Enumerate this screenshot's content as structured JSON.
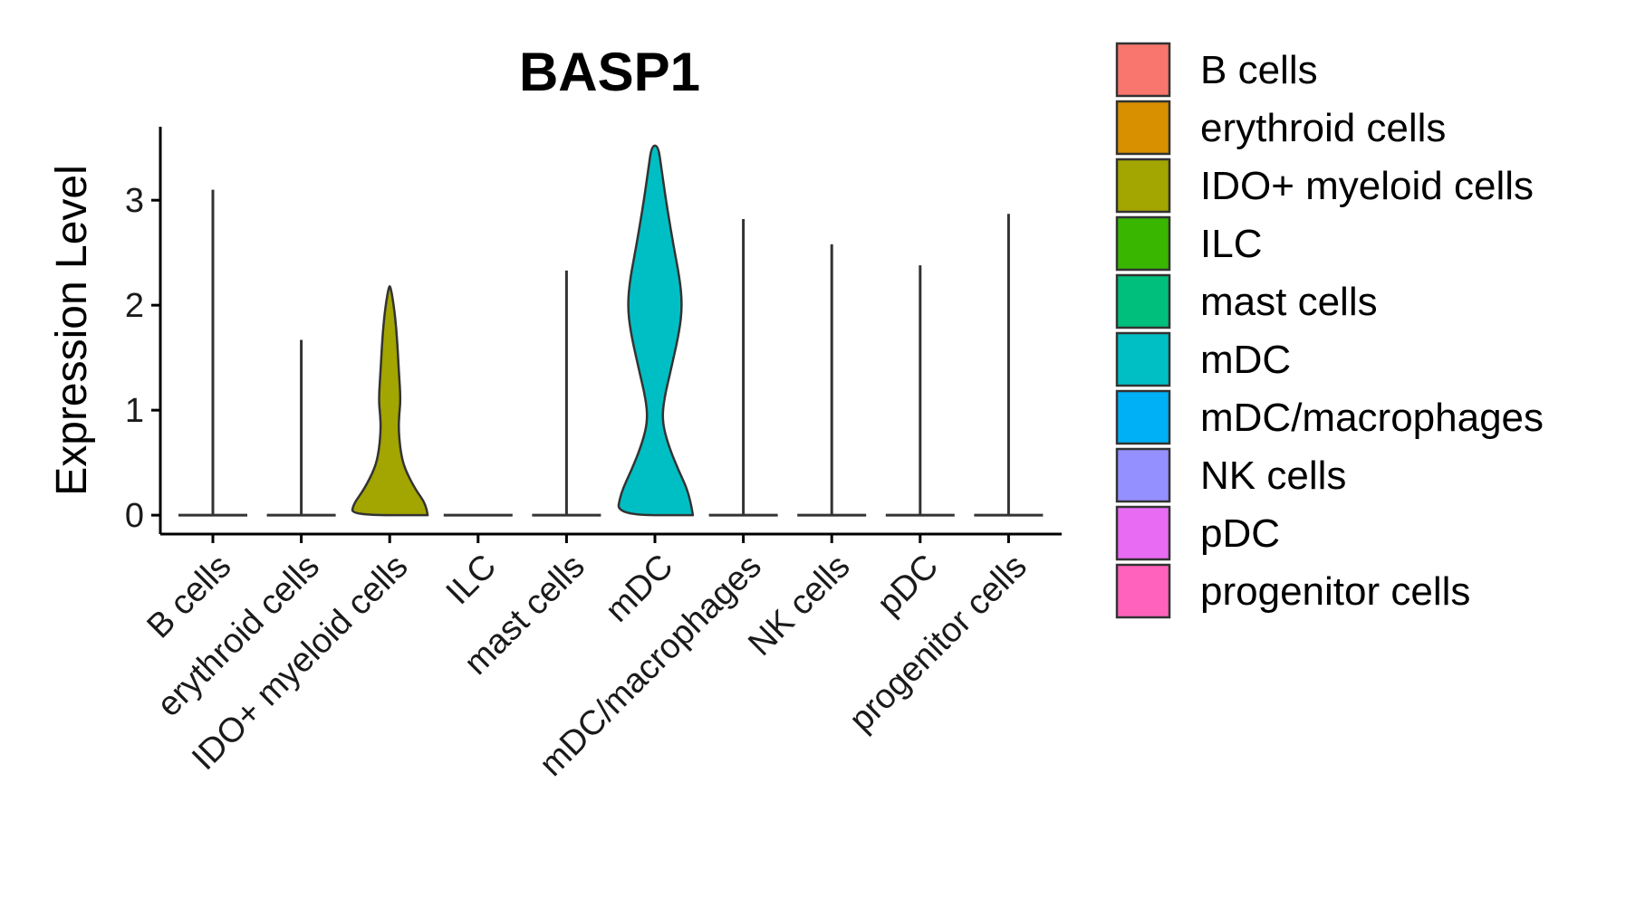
{
  "chart_data": {
    "type": "violin",
    "title": "BASP1",
    "xlabel": "",
    "ylabel": "Expression Level",
    "ylim": [
      -0.18,
      3.7
    ],
    "yticks": [
      0,
      1,
      2,
      3
    ],
    "categories": [
      "B cells",
      "erythroid cells",
      "IDO+ myeloid cells",
      "ILC",
      "mast cells",
      "mDC",
      "mDC/macrophages",
      "NK cells",
      "pDC",
      "progenitor cells"
    ],
    "colors": [
      "#F8766D",
      "#D89000",
      "#A3A500",
      "#39B600",
      "#00BF7D",
      "#00BFC4",
      "#00B0F6",
      "#9590FF",
      "#E76BF3",
      "#FF62BC"
    ],
    "max_values": [
      3.1,
      1.67,
      2.18,
      0,
      2.33,
      3.52,
      2.82,
      2.58,
      2.38,
      2.87
    ],
    "density_profiles": [
      null,
      null,
      [
        [
          0,
          0.93
        ],
        [
          0.1,
          0.9
        ],
        [
          0.25,
          0.62
        ],
        [
          0.45,
          0.36
        ],
        [
          0.6,
          0.27
        ],
        [
          0.8,
          0.22
        ],
        [
          0.95,
          0.23
        ],
        [
          1.1,
          0.27
        ],
        [
          1.4,
          0.22
        ],
        [
          1.75,
          0.17
        ],
        [
          2.0,
          0.1
        ],
        [
          2.18,
          0.02
        ]
      ],
      null,
      null,
      [
        [
          0,
          0.93
        ],
        [
          0.2,
          0.85
        ],
        [
          0.45,
          0.55
        ],
        [
          0.7,
          0.3
        ],
        [
          0.9,
          0.18
        ],
        [
          1.1,
          0.22
        ],
        [
          1.4,
          0.4
        ],
        [
          1.75,
          0.6
        ],
        [
          2.0,
          0.67
        ],
        [
          2.25,
          0.61
        ],
        [
          2.6,
          0.44
        ],
        [
          3.0,
          0.27
        ],
        [
          3.3,
          0.16
        ],
        [
          3.52,
          0.08
        ]
      ],
      null,
      null,
      null,
      null
    ],
    "legend": {
      "position": "right",
      "items": [
        "B cells",
        "erythroid cells",
        "IDO+ myeloid cells",
        "ILC",
        "mast cells",
        "mDC",
        "mDC/macrophages",
        "NK cells",
        "pDC",
        "progenitor cells"
      ]
    }
  }
}
